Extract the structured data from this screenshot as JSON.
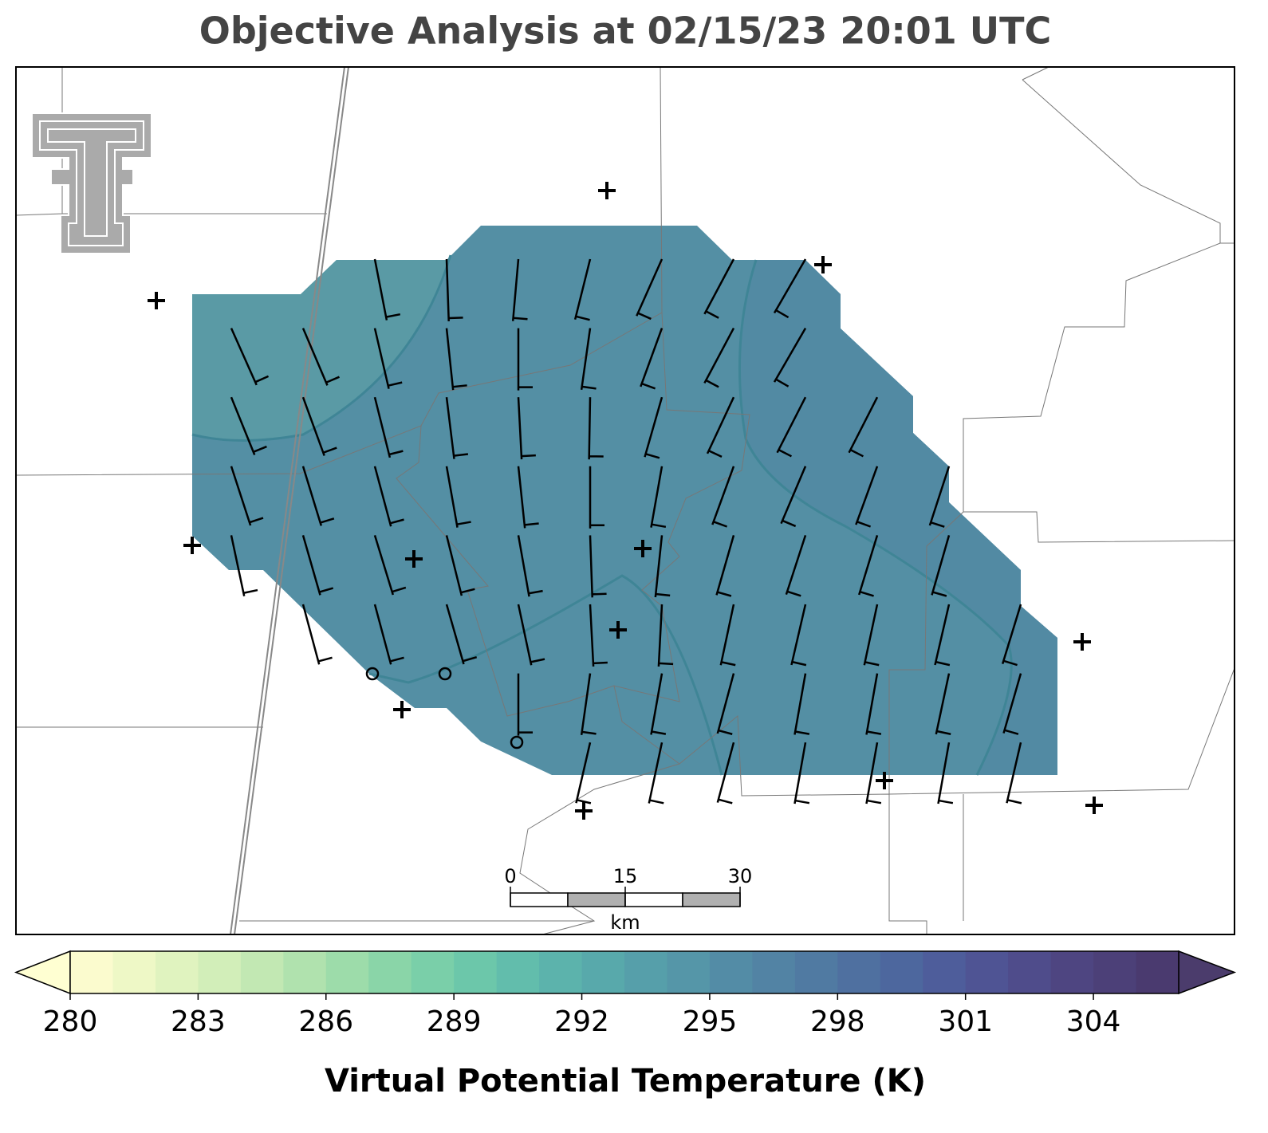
{
  "chart_data": {
    "type": "barb-map",
    "title": "Objective Analysis at 02/15/23 20:01 UTC",
    "wind_direction": [
      [
        null,
        null,
        169,
        178,
        185,
        194,
        204,
        208,
        210,
        null,
        null,
        null
      ],
      [
        156,
        157,
        167,
        174,
        180,
        188,
        200,
        208,
        210,
        null,
        null,
        null
      ],
      [
        158,
        160,
        166,
        173,
        177,
        181,
        196,
        205,
        207,
        207,
        null,
        null
      ],
      [
        162,
        163,
        165,
        170,
        174,
        180,
        190,
        200,
        203,
        200,
        198,
        null
      ],
      [
        168,
        164,
        163,
        166,
        170,
        178,
        186,
        196,
        198,
        197,
        196,
        null
      ],
      [
        null,
        165,
        165,
        164,
        168,
        177,
        183,
        192,
        193,
        192,
        193,
        197
      ],
      [
        null,
        null,
        null,
        null,
        180,
        188,
        190,
        195,
        190,
        190,
        192,
        196
      ],
      [
        null,
        null,
        null,
        null,
        null,
        193,
        192,
        195,
        190,
        190,
        190,
        193
      ]
    ],
    "colorbar": {
      "label": "Virtual Potential Temperature (K)",
      "range": [
        280,
        306
      ],
      "ticks": [
        280,
        283,
        286,
        289,
        292,
        295,
        298,
        301,
        304
      ],
      "colors": [
        "#fbfbce",
        "#eef8c6",
        "#e0f3bf",
        "#d2eeb9",
        "#c2e8b3",
        "#b0e2ae",
        "#9ddcaa",
        "#8ad5a8",
        "#7acfa9",
        "#6cc7aa",
        "#62bdac",
        "#5cb3ac",
        "#58a9ab",
        "#569faa",
        "#5596a8",
        "#538ca6",
        "#5283a4",
        "#507aa2",
        "#4f70a0",
        "#4d679e",
        "#4e5d9b",
        "#4f5494",
        "#4f4c8b",
        "#4e4581",
        "#4c4078",
        "#4a3a6f"
      ],
      "extend_colors": [
        "#ffffd2",
        "#4b3c6c"
      ]
    },
    "scale_bar": {
      "ticks": [
        0,
        15,
        30
      ],
      "unit": "km"
    }
  }
}
